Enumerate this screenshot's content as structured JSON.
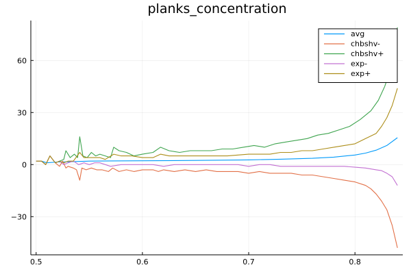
{
  "chart_data": {
    "type": "line",
    "title": "planks_concentration",
    "xlabel": "",
    "ylabel": "",
    "xlim": [
      0.495,
      0.845
    ],
    "ylim": [
      -52,
      83
    ],
    "xticks": [
      0.5,
      0.6,
      0.7,
      0.8
    ],
    "xtick_labels": [
      "0.5",
      "0.6",
      "0.7",
      "0.8"
    ],
    "yticks": [
      -30,
      0,
      30,
      60
    ],
    "ytick_labels": [
      "−30",
      "0",
      "30",
      "60"
    ],
    "grid": true,
    "legend_position": "top-right",
    "series": [
      {
        "name": "avg",
        "color": "#009AFA",
        "points": [
          [
            0.5,
            2
          ],
          [
            0.505,
            2
          ],
          [
            0.51,
            1
          ],
          [
            0.52,
            1.5
          ],
          [
            0.53,
            1.6
          ],
          [
            0.54,
            1.8
          ],
          [
            0.55,
            2
          ],
          [
            0.57,
            2.1
          ],
          [
            0.6,
            2.2
          ],
          [
            0.65,
            2.4
          ],
          [
            0.7,
            2.7
          ],
          [
            0.73,
            3.1
          ],
          [
            0.76,
            3.6
          ],
          [
            0.78,
            4.3
          ],
          [
            0.8,
            5.5
          ],
          [
            0.81,
            6.6
          ],
          [
            0.82,
            8.3
          ],
          [
            0.83,
            11
          ],
          [
            0.84,
            15.5
          ]
        ]
      },
      {
        "name": "chbshv-",
        "color": "#E26F46",
        "points": [
          [
            0.5,
            2
          ],
          [
            0.505,
            2
          ],
          [
            0.509,
            0
          ],
          [
            0.513,
            5
          ],
          [
            0.518,
            1
          ],
          [
            0.522,
            -1
          ],
          [
            0.525,
            2
          ],
          [
            0.528,
            -2
          ],
          [
            0.53,
            -1
          ],
          [
            0.535,
            -2
          ],
          [
            0.538,
            -3
          ],
          [
            0.541,
            -9
          ],
          [
            0.543,
            -2
          ],
          [
            0.547,
            -3
          ],
          [
            0.552,
            -2
          ],
          [
            0.557,
            -3
          ],
          [
            0.562,
            -3
          ],
          [
            0.568,
            -4
          ],
          [
            0.572,
            -2
          ],
          [
            0.578,
            -4
          ],
          [
            0.585,
            -3
          ],
          [
            0.592,
            -4
          ],
          [
            0.6,
            -3
          ],
          [
            0.61,
            -3
          ],
          [
            0.615,
            -4
          ],
          [
            0.62,
            -3
          ],
          [
            0.63,
            -4
          ],
          [
            0.64,
            -3
          ],
          [
            0.65,
            -4
          ],
          [
            0.66,
            -3
          ],
          [
            0.67,
            -4
          ],
          [
            0.68,
            -4
          ],
          [
            0.69,
            -4
          ],
          [
            0.7,
            -5
          ],
          [
            0.71,
            -4
          ],
          [
            0.72,
            -5
          ],
          [
            0.73,
            -5
          ],
          [
            0.74,
            -5
          ],
          [
            0.75,
            -6
          ],
          [
            0.76,
            -6
          ],
          [
            0.77,
            -7
          ],
          [
            0.78,
            -8
          ],
          [
            0.79,
            -9
          ],
          [
            0.8,
            -10
          ],
          [
            0.81,
            -12
          ],
          [
            0.815,
            -14
          ],
          [
            0.82,
            -17
          ],
          [
            0.825,
            -21
          ],
          [
            0.83,
            -26
          ],
          [
            0.835,
            -35
          ],
          [
            0.84,
            -48
          ]
        ]
      },
      {
        "name": "chbshv+",
        "color": "#3EA44E",
        "points": [
          [
            0.5,
            2
          ],
          [
            0.505,
            2
          ],
          [
            0.509,
            0
          ],
          [
            0.513,
            5
          ],
          [
            0.518,
            1
          ],
          [
            0.522,
            2
          ],
          [
            0.526,
            3
          ],
          [
            0.528,
            8
          ],
          [
            0.532,
            4
          ],
          [
            0.536,
            6
          ],
          [
            0.539,
            4
          ],
          [
            0.541,
            16
          ],
          [
            0.544,
            5
          ],
          [
            0.548,
            4
          ],
          [
            0.552,
            7
          ],
          [
            0.556,
            5
          ],
          [
            0.56,
            6
          ],
          [
            0.565,
            5
          ],
          [
            0.57,
            4
          ],
          [
            0.573,
            10
          ],
          [
            0.578,
            8
          ],
          [
            0.585,
            7
          ],
          [
            0.592,
            5
          ],
          [
            0.6,
            6
          ],
          [
            0.61,
            7
          ],
          [
            0.617,
            10
          ],
          [
            0.625,
            8
          ],
          [
            0.635,
            7
          ],
          [
            0.645,
            8
          ],
          [
            0.655,
            8
          ],
          [
            0.665,
            8
          ],
          [
            0.675,
            9
          ],
          [
            0.685,
            9
          ],
          [
            0.695,
            10
          ],
          [
            0.705,
            11
          ],
          [
            0.715,
            10
          ],
          [
            0.725,
            12
          ],
          [
            0.735,
            13
          ],
          [
            0.745,
            14
          ],
          [
            0.755,
            15
          ],
          [
            0.765,
            17
          ],
          [
            0.775,
            18
          ],
          [
            0.785,
            20
          ],
          [
            0.795,
            22
          ],
          [
            0.805,
            26
          ],
          [
            0.815,
            31
          ],
          [
            0.822,
            37
          ],
          [
            0.828,
            45
          ],
          [
            0.833,
            54
          ],
          [
            0.837,
            64
          ],
          [
            0.84,
            79
          ]
        ]
      },
      {
        "name": "exp-",
        "color": "#C270D2",
        "points": [
          [
            0.5,
            2
          ],
          [
            0.505,
            2
          ],
          [
            0.509,
            0
          ],
          [
            0.513,
            5
          ],
          [
            0.518,
            1
          ],
          [
            0.522,
            2
          ],
          [
            0.526,
            0
          ],
          [
            0.53,
            1
          ],
          [
            0.535,
            2
          ],
          [
            0.54,
            0
          ],
          [
            0.545,
            1
          ],
          [
            0.55,
            0
          ],
          [
            0.555,
            1
          ],
          [
            0.56,
            1
          ],
          [
            0.57,
            -1
          ],
          [
            0.58,
            0
          ],
          [
            0.59,
            0
          ],
          [
            0.6,
            0
          ],
          [
            0.61,
            0
          ],
          [
            0.62,
            -1
          ],
          [
            0.63,
            0
          ],
          [
            0.65,
            0
          ],
          [
            0.67,
            0
          ],
          [
            0.69,
            0
          ],
          [
            0.7,
            -1
          ],
          [
            0.71,
            0
          ],
          [
            0.72,
            0
          ],
          [
            0.73,
            -1
          ],
          [
            0.74,
            -1
          ],
          [
            0.75,
            -1
          ],
          [
            0.76,
            -1
          ],
          [
            0.77,
            -1
          ],
          [
            0.78,
            -1
          ],
          [
            0.79,
            -1
          ],
          [
            0.8,
            -1.5
          ],
          [
            0.81,
            -2
          ],
          [
            0.82,
            -3
          ],
          [
            0.825,
            -3.5
          ],
          [
            0.83,
            -5
          ],
          [
            0.835,
            -7
          ],
          [
            0.84,
            -12
          ]
        ]
      },
      {
        "name": "exp+",
        "color": "#AC8D18",
        "points": [
          [
            0.5,
            2
          ],
          [
            0.505,
            2
          ],
          [
            0.509,
            0
          ],
          [
            0.513,
            5
          ],
          [
            0.518,
            1
          ],
          [
            0.522,
            2
          ],
          [
            0.526,
            1
          ],
          [
            0.53,
            2
          ],
          [
            0.535,
            2
          ],
          [
            0.541,
            7
          ],
          [
            0.545,
            4
          ],
          [
            0.55,
            4
          ],
          [
            0.555,
            4
          ],
          [
            0.56,
            4
          ],
          [
            0.565,
            3
          ],
          [
            0.573,
            6
          ],
          [
            0.58,
            5
          ],
          [
            0.59,
            5
          ],
          [
            0.6,
            4
          ],
          [
            0.61,
            4
          ],
          [
            0.617,
            6
          ],
          [
            0.625,
            5
          ],
          [
            0.64,
            5
          ],
          [
            0.66,
            5
          ],
          [
            0.68,
            5
          ],
          [
            0.7,
            6
          ],
          [
            0.71,
            6
          ],
          [
            0.72,
            6
          ],
          [
            0.73,
            7
          ],
          [
            0.74,
            7
          ],
          [
            0.75,
            8
          ],
          [
            0.76,
            8
          ],
          [
            0.77,
            9
          ],
          [
            0.78,
            10
          ],
          [
            0.79,
            11
          ],
          [
            0.8,
            12
          ],
          [
            0.81,
            15
          ],
          [
            0.82,
            18
          ],
          [
            0.825,
            22
          ],
          [
            0.83,
            27
          ],
          [
            0.835,
            34
          ],
          [
            0.84,
            44
          ]
        ]
      }
    ]
  }
}
